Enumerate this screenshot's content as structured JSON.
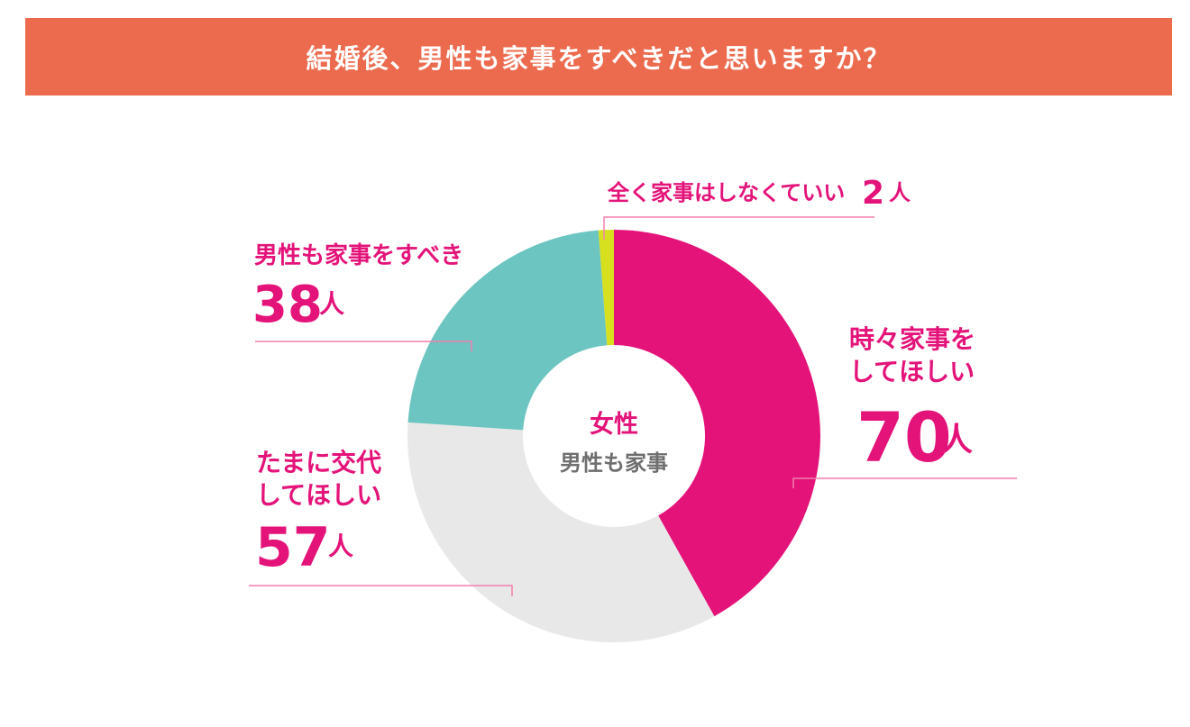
{
  "header": {
    "title": "結婚後、男性も家事をすべきだと思いますか？",
    "bg_color": "#ec6a4d"
  },
  "center": {
    "line1": "女性",
    "line2": "男性も家事"
  },
  "colors": {
    "text_pink": "#e4137a",
    "center_gray": "#6e6e6e",
    "leader": "#f27fae"
  },
  "chart_data": {
    "type": "pie",
    "title": "結婚後、男性も家事をすべきだと思いますか？",
    "unit": "人",
    "slices": [
      {
        "key": "sometimes",
        "label_lines": [
          "時々家事を",
          "してほしい"
        ],
        "value": 70,
        "color": "#e4137a"
      },
      {
        "key": "turns",
        "label_lines": [
          "たまに交代",
          "してほしい"
        ],
        "value": 57,
        "color": "#e8e8e8"
      },
      {
        "key": "should",
        "label_lines": [
          "男性も家事をすべき"
        ],
        "value": 38,
        "color": "#6cc5c1"
      },
      {
        "key": "none",
        "label_lines": [
          "全く家事はしなくていい"
        ],
        "value": 2,
        "color": "#d7e01e"
      }
    ]
  }
}
